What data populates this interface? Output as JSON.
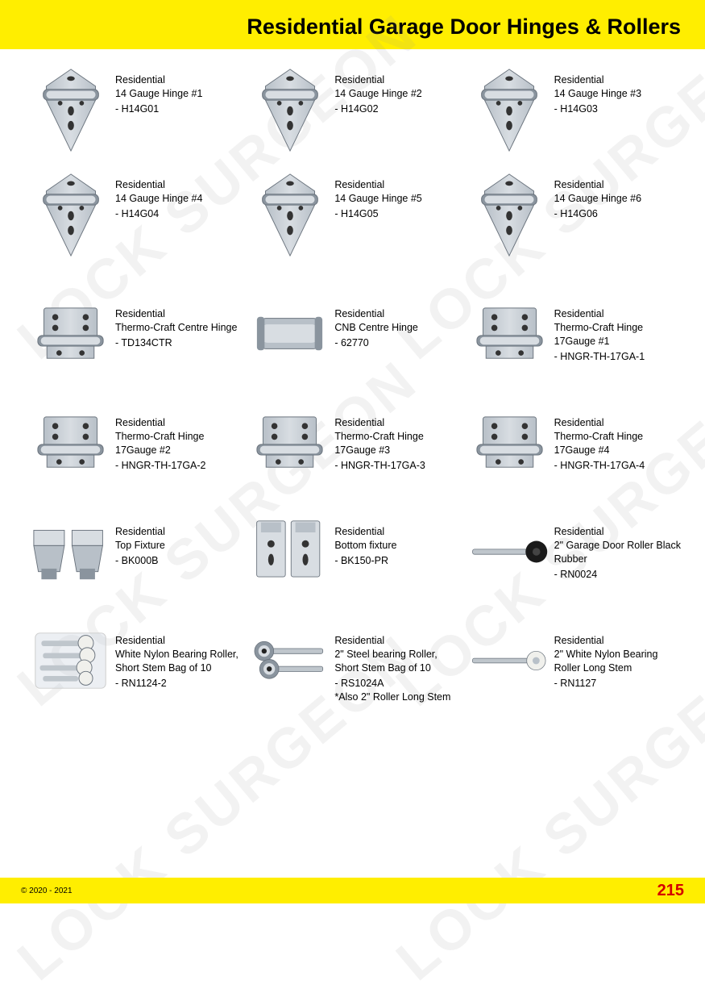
{
  "page": {
    "title": "Residential Garage Door Hinges & Rollers",
    "copyright": "© 2020 - 2021",
    "page_number": "215",
    "watermark_text": "LOCK SURGEON",
    "header_bg": "#ffee00",
    "footer_bg": "#ffee00",
    "pagenum_color": "#d40000"
  },
  "products": [
    {
      "line1": "Residential",
      "line2": "14 Gauge Hinge #1",
      "sku": "- H14G01",
      "img_type": "hinge-diamond"
    },
    {
      "line1": "Residential",
      "line2": "14 Gauge Hinge #2",
      "sku": "- H14G02",
      "img_type": "hinge-diamond"
    },
    {
      "line1": "Residential",
      "line2": "14 Gauge Hinge #3",
      "sku": "- H14G03",
      "img_type": "hinge-diamond"
    },
    {
      "line1": "Residential",
      "line2": "14 Gauge Hinge #4",
      "sku": "- H14G04",
      "img_type": "hinge-diamond"
    },
    {
      "line1": "Residential",
      "line2": "14 Gauge Hinge #5",
      "sku": "- H14G05",
      "img_type": "hinge-diamond"
    },
    {
      "line1": "Residential",
      "line2": "14 Gauge Hinge #6",
      "sku": "- H14G06",
      "img_type": "hinge-diamond"
    },
    {
      "line1": "Residential",
      "line2": "Thermo-Craft Centre Hinge",
      "sku": "- TD134CTR",
      "img_type": "hinge-box"
    },
    {
      "line1": "Residential",
      "line2": "CNB Centre Hinge",
      "sku": "- 62770",
      "img_type": "hinge-cyl"
    },
    {
      "line1": "Residential",
      "line2": "Thermo-Craft Hinge 17Gauge #1",
      "sku": "- HNGR-TH-17GA-1",
      "img_type": "hinge-box"
    },
    {
      "line1": "Residential",
      "line2": "Thermo-Craft Hinge 17Gauge #2",
      "sku": "- HNGR-TH-17GA-2",
      "img_type": "hinge-box"
    },
    {
      "line1": "Residential",
      "line2": "Thermo-Craft Hinge 17Gauge #3",
      "sku": "- HNGR-TH-17GA-3",
      "img_type": "hinge-box"
    },
    {
      "line1": "Residential",
      "line2": "Thermo-Craft Hinge 17Gauge #4",
      "sku": "- HNGR-TH-17GA-4",
      "img_type": "hinge-box"
    },
    {
      "line1": "Residential",
      "line2": "Top Fixture",
      "sku": "- BK000B",
      "img_type": "fixture-top"
    },
    {
      "line1": "Residential",
      "line2": "Bottom fixture",
      "sku": "- BK150-PR",
      "img_type": "fixture-bottom"
    },
    {
      "line1": "Residential",
      "line2": "2\" Garage Door Roller Black Rubber",
      "sku": "- RN0024",
      "img_type": "roller-black"
    },
    {
      "line1": "Residential",
      "line2": "White Nylon Bearing Roller, Short Stem Bag of 10",
      "sku": "- RN1124-2",
      "img_type": "roller-bag"
    },
    {
      "line1": "Residential",
      "line2": "2\" Steel bearing Roller, Short Stem Bag of 10",
      "sku": "- RS1024A",
      "extra": "*Also 2\" Roller Long Stem",
      "img_type": "roller-steel"
    },
    {
      "line1": "Residential",
      "line2": "2\" White Nylon Bearing Roller Long Stem",
      "sku": "- RN1127",
      "img_type": "roller-white"
    }
  ],
  "svg_defs": {
    "metal_light": "#d8dde2",
    "metal_mid": "#b8c0c8",
    "metal_dark": "#8a949e",
    "metal_edge": "#6a737d",
    "black": "#1a1a1a",
    "white_nylon": "#f0f0ec",
    "steel_shaft": "#bfc6cc"
  }
}
